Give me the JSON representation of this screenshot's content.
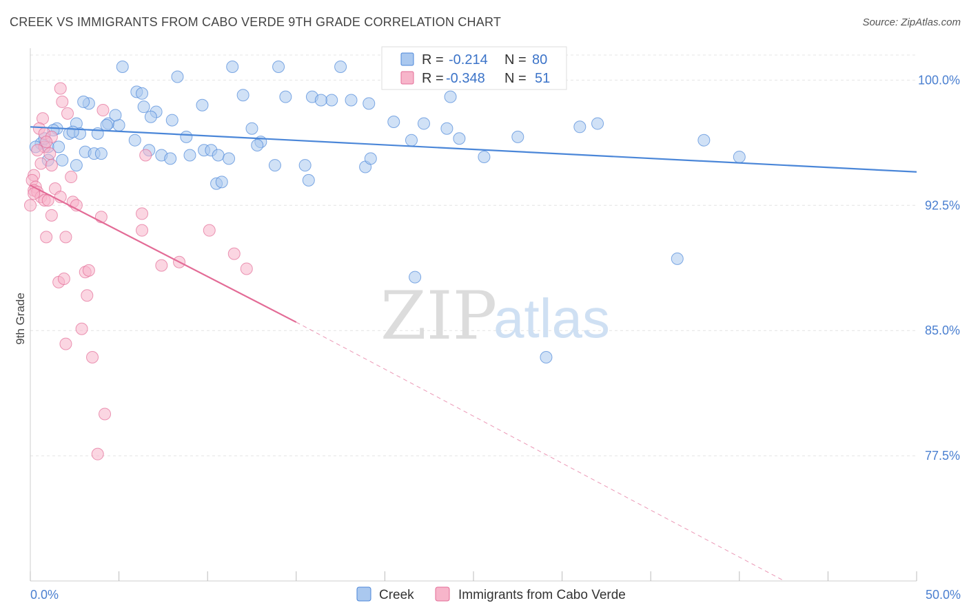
{
  "header": {
    "title": "CREEK VS IMMIGRANTS FROM CABO VERDE 9TH GRADE CORRELATION CHART",
    "source": "Source: ZipAtlas.com"
  },
  "watermark": {
    "zip": "ZIP",
    "atlas": "atlas"
  },
  "legend_top": {
    "rows": [
      {
        "r_label": "R =",
        "r_value": "-0.214",
        "n_label": "N =",
        "n_value": "80",
        "color": "#aac8ef"
      },
      {
        "r_label": "R =",
        "r_value": "-0.348",
        "n_label": "N =",
        "n_value": "51",
        "color": "#f7b5ca"
      }
    ]
  },
  "chart_data": {
    "type": "scatter",
    "title": "CREEK VS IMMIGRANTS FROM CABO VERDE 9TH GRADE CORRELATION CHART",
    "xlabel": "",
    "ylabel": "9th Grade",
    "xlim": [
      0,
      50
    ],
    "ylim": [
      70.0,
      101.5
    ],
    "x_tick_labels": [
      "0.0%",
      "50.0%"
    ],
    "y_ticks": [
      100.0,
      92.5,
      85.0,
      77.5
    ],
    "y_tick_labels": [
      "100.0%",
      "92.5%",
      "85.0%",
      "77.5%"
    ],
    "grid": true,
    "legend_position": "top-center",
    "series": [
      {
        "name": "Creek",
        "color": "#4a86d8",
        "fill": "#aac8ef",
        "trend": {
          "x": [
            0,
            50
          ],
          "y": [
            97.2,
            94.5
          ],
          "dashed_from": null
        },
        "points": [
          [
            5.2,
            100.8
          ],
          [
            11.4,
            100.8
          ],
          [
            14.0,
            100.8
          ],
          [
            17.5,
            100.8
          ],
          [
            21.8,
            100.8
          ],
          [
            23.0,
            100.8
          ],
          [
            8.3,
            100.2
          ],
          [
            23.7,
            99.0
          ],
          [
            6.0,
            99.3
          ],
          [
            14.4,
            99.0
          ],
          [
            15.9,
            99.0
          ],
          [
            17.0,
            98.8
          ],
          [
            18.1,
            98.8
          ],
          [
            6.4,
            98.4
          ],
          [
            3.3,
            98.6
          ],
          [
            9.7,
            98.5
          ],
          [
            7.1,
            98.1
          ],
          [
            6.8,
            97.8
          ],
          [
            8.0,
            97.6
          ],
          [
            2.6,
            97.4
          ],
          [
            4.4,
            97.4
          ],
          [
            5.0,
            97.3
          ],
          [
            4.3,
            97.3
          ],
          [
            1.5,
            97.1
          ],
          [
            2.2,
            96.8
          ],
          [
            2.8,
            96.8
          ],
          [
            2.4,
            96.9
          ],
          [
            3.8,
            96.8
          ],
          [
            5.9,
            96.4
          ],
          [
            8.8,
            96.6
          ],
          [
            12.5,
            97.1
          ],
          [
            13.0,
            96.3
          ],
          [
            20.5,
            97.5
          ],
          [
            23.5,
            97.1
          ],
          [
            0.6,
            96.2
          ],
          [
            1.0,
            96.0
          ],
          [
            1.6,
            96.0
          ],
          [
            3.1,
            95.7
          ],
          [
            3.6,
            95.6
          ],
          [
            4.0,
            95.6
          ],
          [
            6.7,
            95.8
          ],
          [
            7.4,
            95.5
          ],
          [
            7.9,
            95.3
          ],
          [
            9.0,
            95.5
          ],
          [
            9.8,
            95.8
          ],
          [
            10.2,
            95.8
          ],
          [
            10.6,
            95.5
          ],
          [
            11.2,
            95.3
          ],
          [
            12.8,
            96.1
          ],
          [
            1.0,
            95.2
          ],
          [
            1.8,
            95.2
          ],
          [
            2.6,
            94.9
          ],
          [
            13.8,
            94.9
          ],
          [
            15.5,
            94.9
          ],
          [
            18.9,
            94.8
          ],
          [
            19.2,
            95.3
          ],
          [
            21.5,
            96.4
          ],
          [
            24.2,
            96.5
          ],
          [
            19.1,
            98.6
          ],
          [
            22.2,
            97.4
          ],
          [
            27.5,
            96.6
          ],
          [
            31.0,
            97.2
          ],
          [
            32.0,
            97.4
          ],
          [
            38.0,
            96.4
          ],
          [
            40.0,
            95.4
          ],
          [
            25.6,
            95.4
          ],
          [
            15.7,
            94.0
          ],
          [
            10.5,
            93.8
          ],
          [
            10.8,
            93.9
          ],
          [
            36.5,
            89.3
          ],
          [
            21.7,
            88.2
          ],
          [
            29.1,
            83.4
          ],
          [
            16.4,
            98.8
          ],
          [
            0.3,
            96.0
          ],
          [
            1.3,
            97.0
          ],
          [
            0.8,
            96.5
          ],
          [
            12.0,
            99.1
          ],
          [
            4.8,
            97.9
          ],
          [
            3.0,
            98.7
          ],
          [
            6.3,
            99.2
          ]
        ]
      },
      {
        "name": "Immigrants from Cabo Verde",
        "color": "#e36b96",
        "fill": "#f7b5ca",
        "trend": {
          "x": [
            0,
            15.0,
            50
          ],
          "y": [
            93.7,
            85.5,
            65.8
          ],
          "dashed_from": 15.0
        },
        "points": [
          [
            1.7,
            99.5
          ],
          [
            1.8,
            98.7
          ],
          [
            2.1,
            98.0
          ],
          [
            4.1,
            98.2
          ],
          [
            0.7,
            97.7
          ],
          [
            0.5,
            97.1
          ],
          [
            0.8,
            96.8
          ],
          [
            1.2,
            96.6
          ],
          [
            0.8,
            96.0
          ],
          [
            0.4,
            95.8
          ],
          [
            1.1,
            95.6
          ],
          [
            0.6,
            95.0
          ],
          [
            1.2,
            94.9
          ],
          [
            6.5,
            95.5
          ],
          [
            0.2,
            94.3
          ],
          [
            0.1,
            94.0
          ],
          [
            2.3,
            94.2
          ],
          [
            0.3,
            93.6
          ],
          [
            0.2,
            93.4
          ],
          [
            0.4,
            93.3
          ],
          [
            1.4,
            93.5
          ],
          [
            0.6,
            93.0
          ],
          [
            0.8,
            92.8
          ],
          [
            1.7,
            93.0
          ],
          [
            2.4,
            92.7
          ],
          [
            2.6,
            92.5
          ],
          [
            1.0,
            92.8
          ],
          [
            0.0,
            92.5
          ],
          [
            6.3,
            92.0
          ],
          [
            4.0,
            91.8
          ],
          [
            1.2,
            91.9
          ],
          [
            0.9,
            90.6
          ],
          [
            2.0,
            90.6
          ],
          [
            6.3,
            91.0
          ],
          [
            10.1,
            91.0
          ],
          [
            11.5,
            89.6
          ],
          [
            7.4,
            88.9
          ],
          [
            8.4,
            89.1
          ],
          [
            12.2,
            88.7
          ],
          [
            3.1,
            88.5
          ],
          [
            3.3,
            88.6
          ],
          [
            1.6,
            87.9
          ],
          [
            1.9,
            88.1
          ],
          [
            3.2,
            87.1
          ],
          [
            2.9,
            85.1
          ],
          [
            2.0,
            84.2
          ],
          [
            3.5,
            83.4
          ],
          [
            4.2,
            80.0
          ],
          [
            3.8,
            77.6
          ],
          [
            0.2,
            93.2
          ],
          [
            0.9,
            96.3
          ]
        ]
      }
    ]
  },
  "bottom_legend": {
    "items": [
      {
        "label": "Creek",
        "color": "#aac8ef"
      },
      {
        "label": "Immigrants from Cabo Verde",
        "color": "#f7b5ca"
      }
    ]
  }
}
